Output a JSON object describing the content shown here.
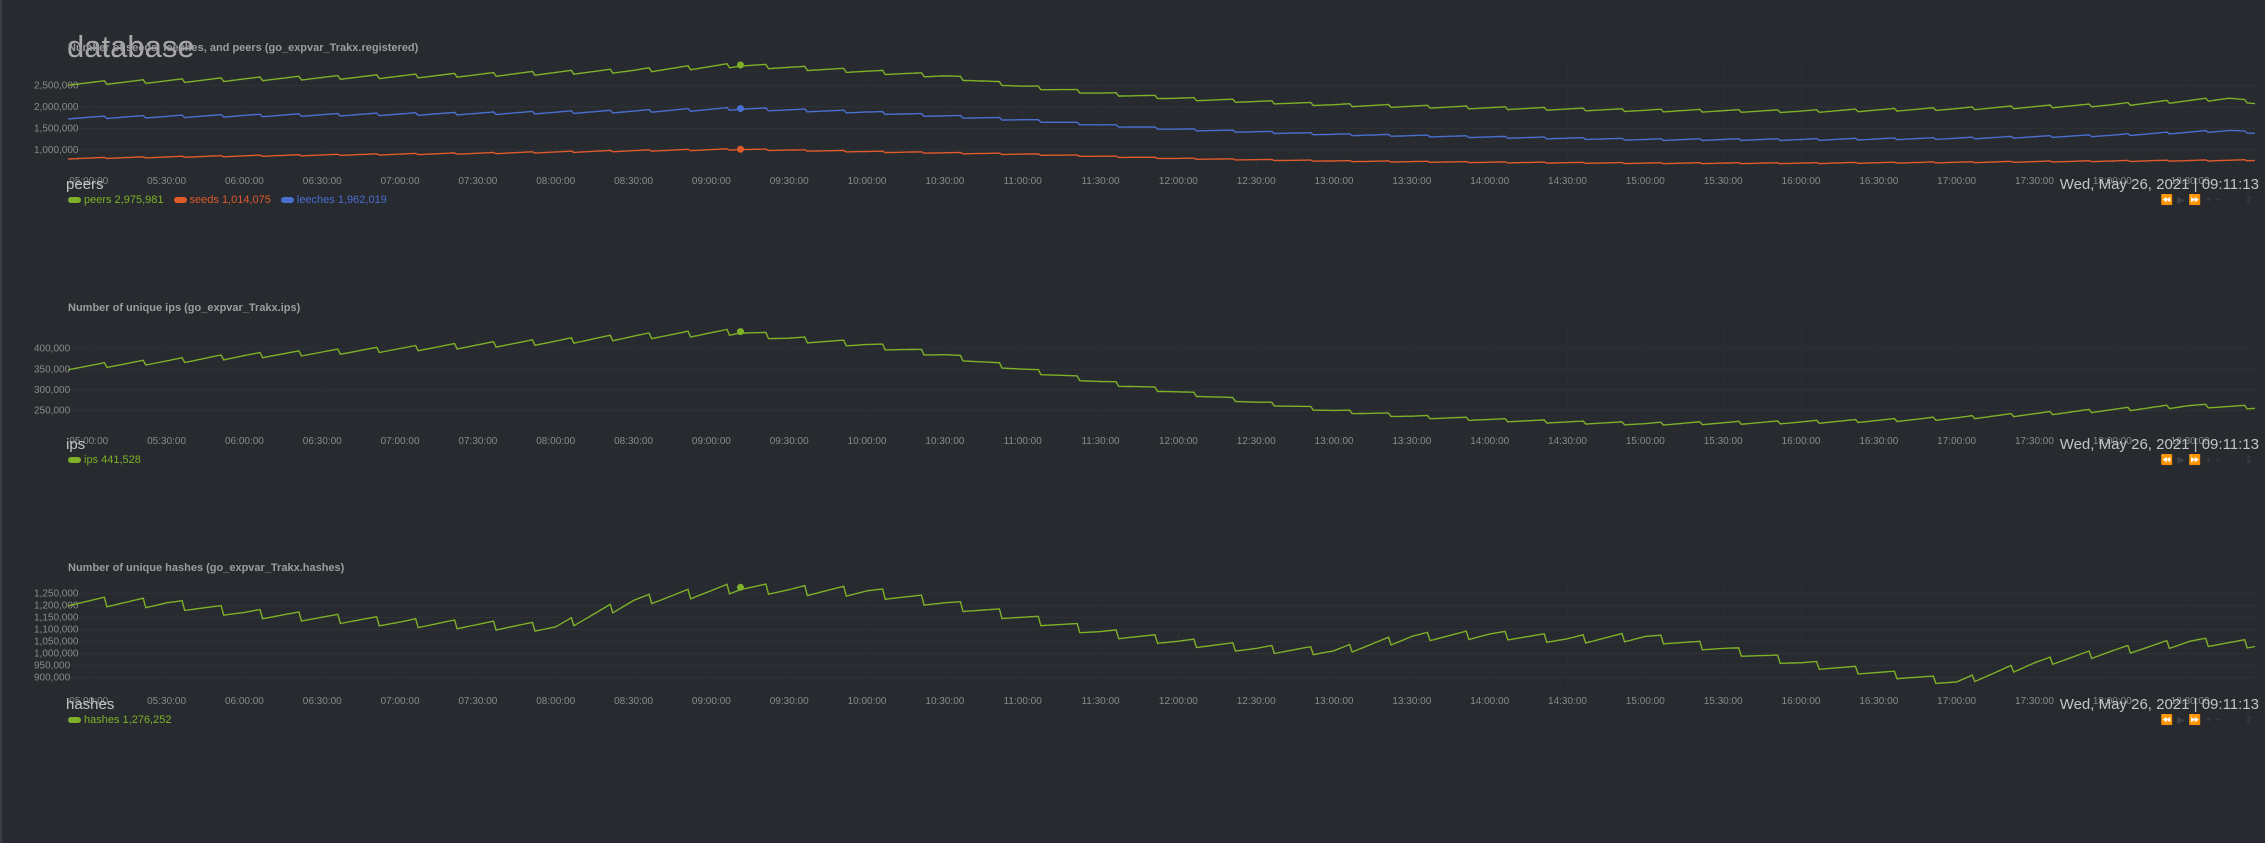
{
  "page": {
    "title": "database"
  },
  "time_axis_ticks": [
    "05:00:00",
    "05:30:00",
    "06:00:00",
    "06:30:00",
    "07:00:00",
    "07:30:00",
    "08:00:00",
    "08:30:00",
    "09:00:00",
    "09:30:00",
    "10:00:00",
    "10:30:00",
    "11:00:00",
    "11:30:00",
    "12:00:00",
    "12:30:00",
    "13:00:00",
    "13:30:00",
    "14:00:00",
    "14:30:00",
    "15:00:00",
    "15:30:00",
    "16:00:00",
    "16:30:00",
    "17:00:00",
    "17:30:00",
    "18:00:00",
    "18:30:00"
  ],
  "toolbar_icons": [
    "rewind-icon",
    "play-icon",
    "forward-icon",
    "zoom-in-icon",
    "zoom-out-icon"
  ],
  "chart_data": [
    {
      "type": "line",
      "title": "Number of seeds, leeches, and peers (go_expvar_Trakx.registered)",
      "family": "peers",
      "timestamp": "Wed, May 26, 2021 | 09:11:13",
      "x_start": "04:52:00",
      "x_end": "18:55:00",
      "selected_time": "09:11:13",
      "ylim": [
        600000,
        3000000
      ],
      "y_ticks": [
        1000000,
        1500000,
        2000000,
        2500000
      ],
      "y_tick_labels": [
        "1,000,000",
        "1,500,000",
        "2,000,000",
        "2,500,000"
      ],
      "grid": true,
      "x_ticks": [
        "05:00:00",
        "05:30:00",
        "06:00:00",
        "06:30:00",
        "07:00:00",
        "07:30:00",
        "08:00:00",
        "08:30:00",
        "09:00:00",
        "09:30:00",
        "10:00:00",
        "10:30:00",
        "11:00:00",
        "11:30:00",
        "12:00:00",
        "12:30:00",
        "13:00:00",
        "13:30:00",
        "14:00:00",
        "14:30:00",
        "15:00:00",
        "15:30:00",
        "16:00:00",
        "16:30:00",
        "17:00:00",
        "17:30:00",
        "18:00:00",
        "18:30:00"
      ],
      "series": [
        {
          "name": "peers",
          "color": "#7eb128",
          "value_label": "2,975,981",
          "selected_value": 2975981,
          "points": [
            [
              "04:52",
              2550000
            ],
            [
              "06:00",
              2650000
            ],
            [
              "07:30",
              2750000
            ],
            [
              "08:30",
              2850000
            ],
            [
              "09:11",
              2975981
            ],
            [
              "10:00",
              2830000
            ],
            [
              "10:30",
              2720000
            ],
            [
              "11:00",
              2480000
            ],
            [
              "11:30",
              2320000
            ],
            [
              "12:00",
              2200000
            ],
            [
              "13:00",
              2050000
            ],
            [
              "14:00",
              1980000
            ],
            [
              "15:00",
              1920000
            ],
            [
              "16:00",
              1900000
            ],
            [
              "17:00",
              1960000
            ],
            [
              "18:00",
              2050000
            ],
            [
              "18:45",
              2200000
            ],
            [
              "18:55",
              2100000
            ]
          ]
        },
        {
          "name": "seeds",
          "color": "#e05a2b",
          "value_label": "1,014,075",
          "selected_value": 1014075,
          "points": [
            [
              "04:52",
              800000
            ],
            [
              "06:00",
              860000
            ],
            [
              "07:30",
              920000
            ],
            [
              "08:30",
              980000
            ],
            [
              "09:11",
              1014075
            ],
            [
              "10:00",
              960000
            ],
            [
              "11:00",
              900000
            ],
            [
              "12:00",
              800000
            ],
            [
              "13:00",
              740000
            ],
            [
              "14:00",
              710000
            ],
            [
              "15:00",
              690000
            ],
            [
              "16:00",
              690000
            ],
            [
              "17:00",
              710000
            ],
            [
              "18:00",
              740000
            ],
            [
              "18:55",
              760000
            ]
          ]
        },
        {
          "name": "leeches",
          "color": "#4a6fd1",
          "value_label": "1,962,019",
          "selected_value": 1962019,
          "points": [
            [
              "04:52",
              1750000
            ],
            [
              "06:00",
              1800000
            ],
            [
              "07:30",
              1850000
            ],
            [
              "08:30",
              1900000
            ],
            [
              "09:11",
              1962019
            ],
            [
              "10:00",
              1880000
            ],
            [
              "11:00",
              1700000
            ],
            [
              "11:30",
              1580000
            ],
            [
              "12:00",
              1480000
            ],
            [
              "13:00",
              1360000
            ],
            [
              "14:00",
              1300000
            ],
            [
              "15:00",
              1240000
            ],
            [
              "16:00",
              1240000
            ],
            [
              "17:00",
              1270000
            ],
            [
              "18:00",
              1340000
            ],
            [
              "18:45",
              1450000
            ],
            [
              "18:55",
              1400000
            ]
          ]
        }
      ]
    },
    {
      "type": "line",
      "title": "Number of unique ips (go_expvar_Trakx.ips)",
      "family": "ips",
      "timestamp": "Wed, May 26, 2021 | 09:11:13",
      "x_start": "04:52:00",
      "x_end": "18:55:00",
      "selected_time": "09:11:13",
      "ylim": [
        210000,
        460000
      ],
      "y_ticks": [
        250000,
        300000,
        350000,
        400000
      ],
      "y_tick_labels": [
        "250,000",
        "300,000",
        "350,000",
        "400,000"
      ],
      "grid": true,
      "x_ticks": [
        "05:00:00",
        "05:30:00",
        "06:00:00",
        "06:30:00",
        "07:00:00",
        "07:30:00",
        "08:00:00",
        "08:30:00",
        "09:00:00",
        "09:30:00",
        "10:00:00",
        "10:30:00",
        "11:00:00",
        "11:30:00",
        "12:00:00",
        "12:30:00",
        "13:00:00",
        "13:30:00",
        "14:00:00",
        "14:30:00",
        "15:00:00",
        "15:30:00",
        "16:00:00",
        "16:30:00",
        "17:00:00",
        "17:30:00",
        "18:00:00",
        "18:30:00"
      ],
      "series": [
        {
          "name": "ips",
          "color": "#7eb128",
          "value_label": "441,528",
          "selected_value": 441528,
          "points": [
            [
              "04:52",
              355000
            ],
            [
              "05:30",
              370000
            ],
            [
              "06:00",
              383000
            ],
            [
              "07:00",
              400000
            ],
            [
              "08:00",
              418000
            ],
            [
              "08:30",
              430000
            ],
            [
              "09:11",
              441528
            ],
            [
              "09:30",
              425000
            ],
            [
              "10:00",
              410000
            ],
            [
              "10:30",
              385000
            ],
            [
              "11:00",
              350000
            ],
            [
              "11:30",
              320000
            ],
            [
              "12:00",
              295000
            ],
            [
              "12:30",
              270000
            ],
            [
              "13:00",
              250000
            ],
            [
              "13:30",
              236000
            ],
            [
              "14:00",
              228000
            ],
            [
              "14:30",
              222000
            ],
            [
              "15:00",
              218000
            ],
            [
              "15:30",
              220000
            ],
            [
              "16:00",
              222000
            ],
            [
              "16:30",
              226000
            ],
            [
              "17:00",
              232000
            ],
            [
              "17:30",
              242000
            ],
            [
              "18:00",
              252000
            ],
            [
              "18:30",
              262000
            ],
            [
              "18:55",
              258000
            ]
          ]
        }
      ]
    },
    {
      "type": "line",
      "title": "Number of unique hashes (go_expvar_Trakx.hashes)",
      "family": "hashes",
      "timestamp": "Wed, May 26, 2021 | 09:11:13",
      "x_start": "04:52:00",
      "x_end": "18:55:00",
      "selected_time": "09:11:13",
      "ylim": [
        860000,
        1290000
      ],
      "y_ticks": [
        900000,
        950000,
        1000000,
        1050000,
        1100000,
        1150000,
        1200000,
        1250000
      ],
      "y_tick_labels": [
        "900,000",
        "950,000",
        "1,000,000",
        "1,050,000",
        "1,100,000",
        "1,150,000",
        "1,200,000",
        "1,250,000"
      ],
      "grid": true,
      "x_ticks": [
        "05:00:00",
        "05:30:00",
        "06:00:00",
        "06:30:00",
        "07:00:00",
        "07:30:00",
        "08:00:00",
        "08:30:00",
        "09:00:00",
        "09:30:00",
        "10:00:00",
        "10:30:00",
        "11:00:00",
        "11:30:00",
        "12:00:00",
        "12:30:00",
        "13:00:00",
        "13:30:00",
        "14:00:00",
        "14:30:00",
        "15:00:00",
        "15:30:00",
        "16:00:00",
        "16:30:00",
        "17:00:00",
        "17:30:00",
        "18:00:00",
        "18:30:00"
      ],
      "series": [
        {
          "name": "hashes",
          "color": "#7eb128",
          "value_label": "1,276,252",
          "selected_value": 1276252,
          "points": [
            [
              "04:52",
              1220000
            ],
            [
              "05:30",
              1210000
            ],
            [
              "06:00",
              1170000
            ],
            [
              "07:00",
              1130000
            ],
            [
              "07:30",
              1120000
            ],
            [
              "08:00",
              1110000
            ],
            [
              "08:30",
              1220000
            ],
            [
              "09:11",
              1276252
            ],
            [
              "09:30",
              1265000
            ],
            [
              "10:00",
              1260000
            ],
            [
              "10:30",
              1210000
            ],
            [
              "11:00",
              1150000
            ],
            [
              "11:30",
              1090000
            ],
            [
              "12:00",
              1050000
            ],
            [
              "12:30",
              1020000
            ],
            [
              "13:00",
              1010000
            ],
            [
              "13:30",
              1070000
            ],
            [
              "14:00",
              1080000
            ],
            [
              "14:30",
              1060000
            ],
            [
              "15:00",
              1070000
            ],
            [
              "15:30",
              1020000
            ],
            [
              "16:00",
              960000
            ],
            [
              "16:30",
              920000
            ],
            [
              "17:00",
              880000
            ],
            [
              "17:30",
              960000
            ],
            [
              "18:00",
              1010000
            ],
            [
              "18:30",
              1050000
            ],
            [
              "18:55",
              1040000
            ]
          ]
        }
      ]
    }
  ]
}
